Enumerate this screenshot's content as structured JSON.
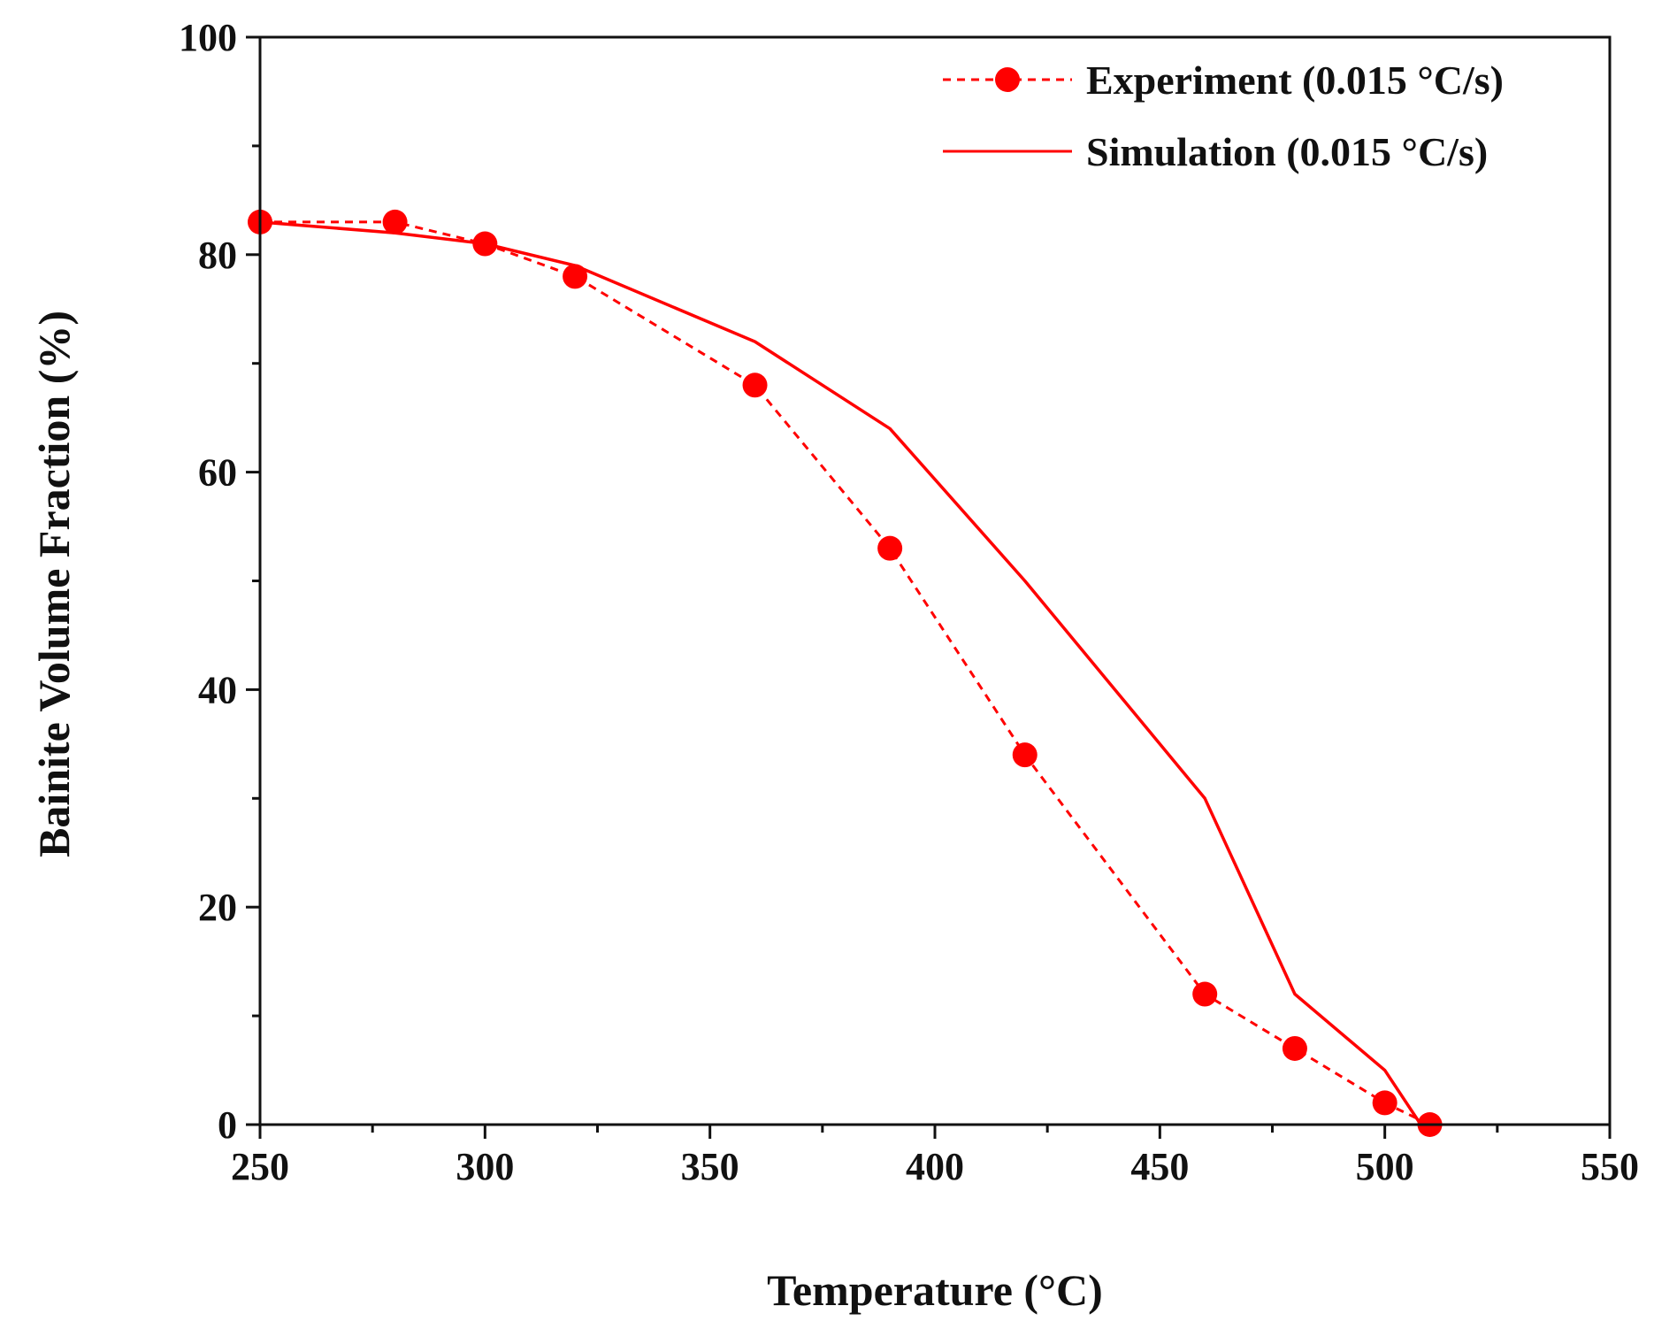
{
  "chart_data": {
    "type": "line",
    "title": "",
    "xlabel": "Temperature (°C)",
    "ylabel": "Bainite Volume Fraction (%)",
    "xlim": [
      250,
      550
    ],
    "ylim": [
      0,
      100
    ],
    "x_major_ticks": [
      250,
      300,
      350,
      400,
      450,
      500,
      550
    ],
    "x_minor_ticks": [
      275,
      325,
      375,
      425,
      475,
      525
    ],
    "y_major_ticks": [
      0,
      20,
      40,
      60,
      80,
      100
    ],
    "y_minor_ticks": [
      10,
      30,
      50,
      70,
      90
    ],
    "x_tick_labels": [
      "250",
      "300",
      "350",
      "400",
      "450",
      "500",
      "550"
    ],
    "y_tick_labels": [
      "0",
      "20",
      "40",
      "60",
      "80",
      "100"
    ],
    "legend_position": "top-right",
    "grid": false,
    "series": [
      {
        "name": "Experiment (0.015 °C/s)",
        "style": "dashed-markers",
        "color": "#ff0000",
        "x": [
          250,
          280,
          300,
          320,
          360,
          390,
          420,
          460,
          480,
          500,
          510
        ],
        "y": [
          83,
          83,
          81,
          78,
          68,
          53,
          34,
          12,
          7,
          2,
          0
        ]
      },
      {
        "name": "Simulation (0.015 °C/s)",
        "style": "solid",
        "color": "#ff0000",
        "x": [
          250,
          280,
          300,
          320,
          360,
          390,
          420,
          460,
          480,
          500,
          508
        ],
        "y": [
          83,
          82,
          81,
          79,
          72,
          64,
          50,
          30,
          12,
          5,
          0
        ]
      }
    ]
  }
}
